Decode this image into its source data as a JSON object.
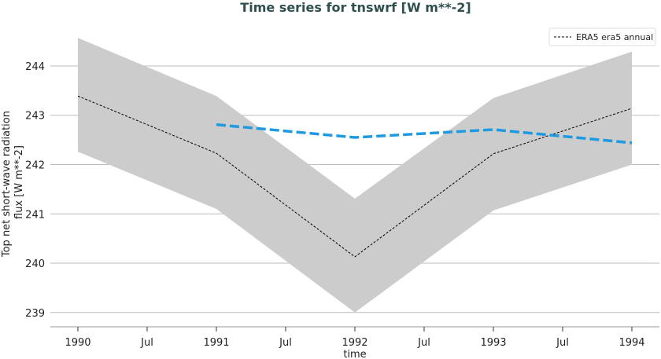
{
  "chart_data": {
    "type": "line",
    "title": "Time series for tnswrf [W m**-2]",
    "xlabel": "time",
    "ylabel": "Top net short-wave radiation flux [W m**-2]",
    "ylabel_lines": [
      "Top net short-wave radiation",
      "flux [W m**-2]"
    ],
    "x": [
      1990,
      1991,
      1992,
      1993,
      1994
    ],
    "xticks": [
      1990,
      1990.5,
      1991,
      1991.5,
      1992,
      1992.5,
      1993,
      1993.5,
      1994
    ],
    "xtick_labels": [
      "1990",
      "Jul",
      "1991",
      "Jul",
      "1992",
      "Jul",
      "1993",
      "Jul",
      "1994"
    ],
    "yticks": [
      239,
      240,
      241,
      242,
      243,
      244
    ],
    "ytick_labels": [
      "239",
      "240",
      "241",
      "242",
      "243",
      "244"
    ],
    "ylim": [
      238.71,
      244.86
    ],
    "xlim": [
      1989.8,
      1994.2
    ],
    "grid": "y",
    "legend": {
      "placement": "top-right",
      "entries": [
        "ERA5 era5 annual"
      ]
    },
    "series": [
      {
        "name": "ERA5 era5 annual",
        "color": "#000000",
        "style": "dashed-thin",
        "x": [
          1990,
          1991,
          1992,
          1993,
          1994
        ],
        "values": [
          243.39,
          242.23,
          240.13,
          242.22,
          243.14
        ],
        "band_upper": [
          244.57,
          243.39,
          241.31,
          243.35,
          244.29
        ],
        "band_lower": [
          242.26,
          241.1,
          239.0,
          241.07,
          242.0
        ],
        "band_color": "#cccccc"
      },
      {
        "color": "#1f9ae0",
        "style": "dashed-thick",
        "x": [
          1991,
          1992,
          1993,
          1994
        ],
        "values": [
          242.81,
          242.55,
          242.71,
          242.44
        ]
      }
    ]
  }
}
